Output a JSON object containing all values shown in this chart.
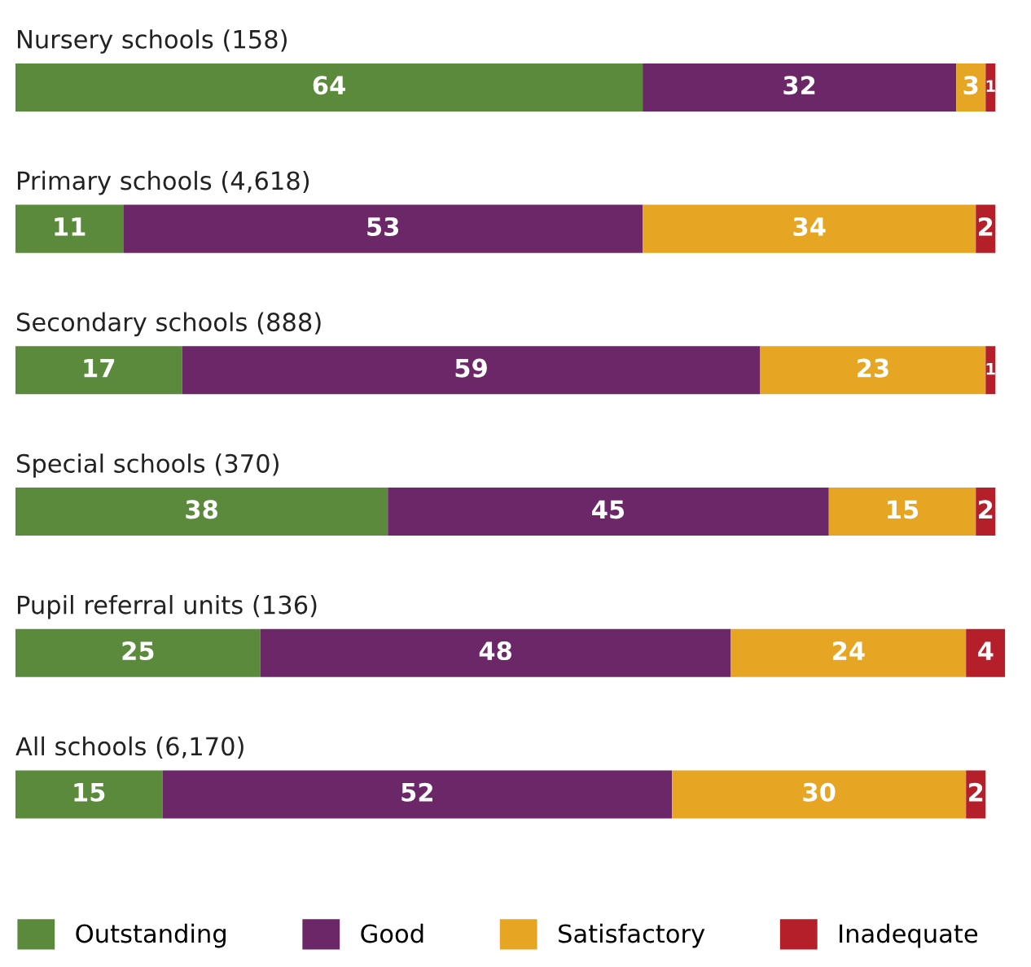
{
  "chart_data": {
    "type": "bar",
    "orientation": "horizontal",
    "stacked": true,
    "data_labels": true,
    "legend": "bottom",
    "categories": [
      "Nursery schools (158)",
      "Primary schools (4,618)",
      "Secondary schools (888)",
      "Special schools (370)",
      "Pupil referral units (136)",
      "All schools (6,170)"
    ],
    "series": [
      {
        "name": "Outstanding",
        "color": "#5b8a3c",
        "values": [
          64,
          11,
          17,
          38,
          25,
          15
        ]
      },
      {
        "name": "Good",
        "color": "#6b2768",
        "values": [
          32,
          53,
          59,
          45,
          48,
          52
        ]
      },
      {
        "name": "Satisfactory",
        "color": "#e6a624",
        "values": [
          3,
          34,
          23,
          15,
          24,
          30
        ]
      },
      {
        "name": "Inadequate",
        "color": "#b51f2a",
        "values": [
          1,
          2,
          1,
          2,
          4,
          2
        ]
      }
    ]
  }
}
